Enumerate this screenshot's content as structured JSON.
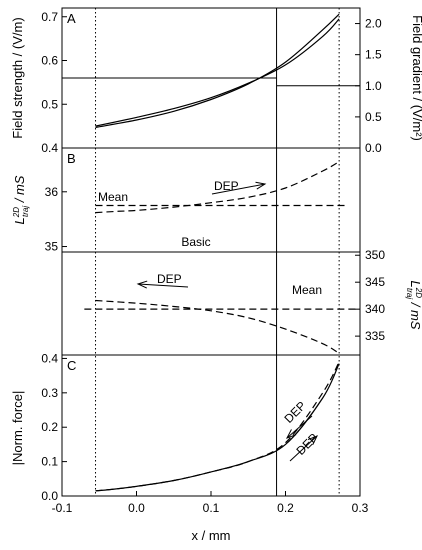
{
  "chart_data": [
    {
      "panel": "A",
      "type": "line",
      "xlim": [
        -0.1,
        0.3
      ],
      "xlabel": "",
      "left_axis": {
        "label": "Field strength / (V/m)",
        "ylim": [
          0.4,
          0.72
        ],
        "ticks": [
          "0.4",
          "0.5",
          "0.6",
          "0.7"
        ]
      },
      "right_axis": {
        "label": "Field gradient / (V/m²)",
        "ylim": [
          0,
          2.25
        ],
        "ticks": [
          "0.0",
          "0.5",
          "1.0",
          "1.5",
          "2.0"
        ]
      },
      "series": [
        {
          "axis": "left",
          "x": [
            -0.055,
            0.0,
            0.05,
            0.1,
            0.15,
            0.2,
            0.25,
            0.272
          ],
          "y": [
            0.45,
            0.47,
            0.49,
            0.515,
            0.548,
            0.59,
            0.655,
            0.695
          ]
        },
        {
          "axis": "right",
          "x": [
            -0.055,
            0.0,
            0.05,
            0.1,
            0.15,
            0.2,
            0.25,
            0.272
          ],
          "y": [
            0.33,
            0.45,
            0.59,
            0.78,
            1.03,
            1.38,
            1.9,
            2.15
          ]
        }
      ],
      "horizontal_lines": [
        {
          "axis": "left",
          "y": 0.56,
          "from": -0.1,
          "to": 0.188
        },
        {
          "axis": "right",
          "y": 1.0,
          "from": 0.188,
          "to": 0.3
        }
      ]
    },
    {
      "panel": "B",
      "type": "line",
      "xlim": [
        -0.1,
        0.3
      ],
      "upper": {
        "label": "L_traj^2D / mS",
        "ylim": [
          34.9,
          36.8
        ],
        "ticks": [
          "35",
          "36"
        ],
        "mean": 35.75,
        "mean_label": "Mean",
        "dep_label": "DEP",
        "x": [
          -0.055,
          -0.03,
          0.0,
          0.05,
          0.1,
          0.15,
          0.2,
          0.25,
          0.272
        ],
        "y": [
          35.62,
          35.64,
          35.66,
          35.72,
          35.8,
          35.9,
          36.07,
          36.38,
          36.55
        ]
      },
      "basic_label": "Basic",
      "lower": {
        "label": "L_traj^2D / mS",
        "ylim": [
          331.5,
          350.6
        ],
        "ticks": [
          "335",
          "340",
          "345",
          "350"
        ],
        "mean": 340.0,
        "mean_label": "Mean",
        "dep_label": "DEP",
        "x": [
          -0.055,
          0.0,
          0.05,
          0.1,
          0.15,
          0.2,
          0.25,
          0.272
        ],
        "y": [
          341.6,
          341.1,
          340.5,
          339.7,
          338.4,
          336.3,
          333.6,
          331.8
        ]
      }
    },
    {
      "panel": "C",
      "type": "line",
      "xlim": [
        -0.1,
        0.3
      ],
      "ylim": [
        0.0,
        0.41
      ],
      "xlabel": "x / mm",
      "ylabel": "|Norm. force|",
      "x_ticks": [
        "-0.1",
        "0.0",
        "0.1",
        "0.2",
        "0.3"
      ],
      "y_ticks": [
        "0.0",
        "0.1",
        "0.2",
        "0.3",
        "0.4"
      ],
      "dep_label_1": "DEP",
      "dep_label_2": "DEP",
      "series": [
        {
          "style": "solid",
          "x": [
            -0.055,
            -0.03,
            0.0,
            0.05,
            0.1,
            0.15,
            0.2,
            0.25,
            0.272
          ],
          "y": [
            0.015,
            0.02,
            0.028,
            0.045,
            0.07,
            0.1,
            0.15,
            0.285,
            0.385
          ]
        },
        {
          "style": "dashed",
          "x": [
            -0.055,
            -0.03,
            0.0,
            0.05,
            0.1,
            0.15,
            0.2,
            0.25,
            0.272
          ],
          "y": [
            0.015,
            0.02,
            0.028,
            0.045,
            0.07,
            0.1,
            0.155,
            0.3,
            0.39
          ]
        }
      ]
    }
  ],
  "vertical_lines": {
    "dotted_left": -0.055,
    "dotted_right": 0.272,
    "solid": 0.188
  }
}
